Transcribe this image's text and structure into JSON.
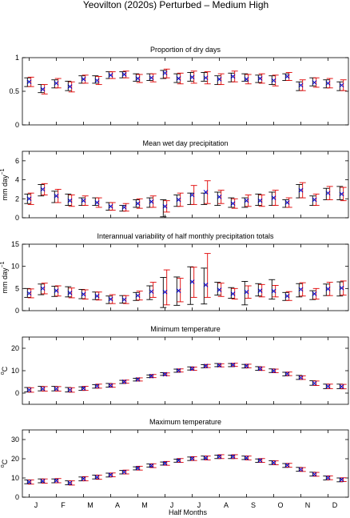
{
  "figure": {
    "title": "Yeovilton (2020s) Perturbed – Medium High",
    "xlabel": "Half Months",
    "month_labels": [
      "J",
      "F",
      "M",
      "A",
      "M",
      "J",
      "J",
      "A",
      "S",
      "O",
      "N",
      "D"
    ]
  },
  "colors": {
    "observed": "#000000",
    "model": "#e00000",
    "marker": "#0000cc"
  },
  "chart_data": [
    {
      "type": "errorbar",
      "title": "Proportion of dry days",
      "ylabel": "",
      "ylim": [
        0,
        1
      ],
      "yticks": [
        0,
        0.5,
        1
      ],
      "x": [
        1,
        2,
        3,
        4,
        5,
        6,
        7,
        8,
        9,
        10,
        11,
        12,
        13,
        14,
        15,
        16,
        17,
        18,
        19,
        20,
        21,
        22,
        23,
        24
      ],
      "observed": {
        "mean": [
          0.64,
          0.54,
          0.61,
          0.58,
          0.67,
          0.67,
          0.74,
          0.74,
          0.7,
          0.71,
          0.75,
          0.7,
          0.72,
          0.72,
          0.67,
          0.71,
          0.7,
          0.68,
          0.67,
          0.71,
          0.58,
          0.64,
          0.61,
          0.58
        ],
        "low": [
          0.57,
          0.48,
          0.55,
          0.51,
          0.62,
          0.62,
          0.69,
          0.7,
          0.65,
          0.66,
          0.69,
          0.63,
          0.65,
          0.65,
          0.6,
          0.64,
          0.65,
          0.63,
          0.6,
          0.66,
          0.51,
          0.58,
          0.55,
          0.51
        ],
        "high": [
          0.7,
          0.6,
          0.67,
          0.65,
          0.73,
          0.73,
          0.79,
          0.79,
          0.76,
          0.76,
          0.81,
          0.76,
          0.78,
          0.78,
          0.73,
          0.77,
          0.76,
          0.74,
          0.73,
          0.76,
          0.64,
          0.7,
          0.67,
          0.64
        ]
      },
      "model": {
        "mean": [
          0.64,
          0.53,
          0.62,
          0.57,
          0.68,
          0.66,
          0.74,
          0.75,
          0.69,
          0.7,
          0.77,
          0.69,
          0.71,
          0.7,
          0.68,
          0.72,
          0.68,
          0.69,
          0.66,
          0.72,
          0.59,
          0.63,
          0.62,
          0.59
        ],
        "low": [
          0.57,
          0.46,
          0.55,
          0.49,
          0.62,
          0.6,
          0.69,
          0.7,
          0.63,
          0.64,
          0.7,
          0.61,
          0.62,
          0.61,
          0.6,
          0.64,
          0.61,
          0.62,
          0.58,
          0.66,
          0.51,
          0.56,
          0.55,
          0.51
        ],
        "high": [
          0.71,
          0.6,
          0.69,
          0.64,
          0.74,
          0.72,
          0.79,
          0.8,
          0.75,
          0.76,
          0.83,
          0.77,
          0.8,
          0.79,
          0.76,
          0.8,
          0.75,
          0.76,
          0.74,
          0.78,
          0.67,
          0.7,
          0.69,
          0.67
        ]
      }
    },
    {
      "type": "errorbar",
      "title": "Mean wet day precipitation",
      "ylabel": "mm day",
      "ylabel_sup": "−1",
      "ylim": [
        0,
        7
      ],
      "yticks": [
        0,
        2,
        4,
        6
      ],
      "x": [
        1,
        2,
        3,
        4,
        5,
        6,
        7,
        8,
        9,
        10,
        11,
        12,
        13,
        14,
        15,
        16,
        17,
        18,
        19,
        20,
        21,
        22,
        23,
        24
      ],
      "observed": {
        "mean": [
          2.0,
          2.9,
          2.2,
          1.9,
          1.7,
          1.7,
          1.2,
          1.0,
          1.5,
          1.6,
          1.0,
          1.8,
          2.0,
          2.0,
          2.0,
          1.6,
          1.6,
          1.9,
          2.0,
          1.5,
          2.8,
          1.8,
          2.5,
          2.6
        ],
        "low": [
          1.5,
          2.3,
          1.6,
          1.3,
          1.3,
          1.3,
          0.8,
          0.7,
          1.1,
          1.1,
          0.1,
          1.2,
          1.4,
          1.4,
          1.3,
          1.1,
          1.1,
          1.3,
          1.3,
          1.1,
          2.1,
          1.3,
          1.9,
          1.9
        ],
        "high": [
          2.5,
          3.5,
          2.8,
          2.5,
          2.1,
          2.1,
          1.6,
          1.3,
          1.9,
          2.1,
          1.9,
          2.4,
          2.6,
          2.6,
          2.7,
          2.1,
          2.1,
          2.5,
          2.7,
          1.9,
          3.5,
          2.3,
          3.1,
          3.3
        ]
      },
      "model": {
        "mean": [
          2.0,
          3.0,
          2.3,
          1.8,
          1.8,
          1.6,
          1.2,
          1.1,
          1.5,
          1.7,
          1.2,
          1.9,
          2.4,
          2.7,
          2.2,
          1.5,
          1.8,
          1.8,
          2.1,
          1.6,
          2.9,
          1.9,
          2.6,
          2.5
        ],
        "low": [
          1.4,
          2.4,
          1.6,
          1.2,
          1.3,
          1.1,
          0.8,
          0.7,
          1.0,
          1.1,
          0.6,
          1.2,
          1.4,
          1.5,
          1.5,
          1.0,
          1.2,
          1.2,
          1.3,
          1.1,
          2.1,
          1.3,
          1.9,
          1.8
        ],
        "high": [
          2.6,
          3.6,
          3.0,
          2.4,
          2.3,
          2.1,
          1.6,
          1.5,
          2.0,
          2.3,
          1.8,
          2.6,
          3.4,
          3.9,
          2.9,
          2.0,
          2.4,
          2.4,
          2.9,
          2.1,
          3.7,
          2.5,
          3.3,
          3.2
        ]
      }
    },
    {
      "type": "errorbar",
      "title": "Interannual variability of half monthly precipitation totals",
      "ylabel": "mm day",
      "ylabel_sup": "−1",
      "ylim": [
        0,
        15
      ],
      "yticks": [
        0,
        5,
        10,
        15
      ],
      "x": [
        1,
        2,
        3,
        4,
        5,
        6,
        7,
        8,
        9,
        10,
        11,
        12,
        13,
        14,
        15,
        16,
        17,
        18,
        19,
        20,
        21,
        22,
        23,
        24
      ],
      "observed": {
        "mean": [
          4.0,
          4.8,
          4.3,
          4.2,
          3.8,
          3.4,
          2.5,
          2.6,
          3.2,
          4.0,
          4.5,
          4.2,
          5.4,
          5.5,
          5.0,
          4.0,
          3.9,
          4.7,
          4.8,
          3.2,
          4.6,
          3.5,
          4.7,
          4.9
        ],
        "low": [
          3.0,
          3.6,
          3.2,
          3.1,
          2.7,
          2.5,
          1.6,
          1.7,
          2.3,
          2.5,
          0.7,
          1.2,
          1.4,
          1.5,
          3.5,
          2.8,
          1.3,
          3.3,
          2.6,
          2.3,
          3.1,
          2.5,
          3.4,
          3.3
        ],
        "high": [
          5.0,
          6.0,
          5.5,
          5.4,
          4.8,
          4.2,
          3.3,
          3.4,
          4.1,
          5.6,
          7.5,
          7.6,
          9.9,
          9.6,
          6.4,
          5.2,
          6.6,
          6.1,
          7.0,
          4.1,
          6.1,
          4.5,
          6.0,
          6.5
        ]
      },
      "model": {
        "mean": [
          3.9,
          5.0,
          4.5,
          4.0,
          3.7,
          3.3,
          2.6,
          2.5,
          3.4,
          4.3,
          4.2,
          4.5,
          6.5,
          5.8,
          4.7,
          3.8,
          4.2,
          4.5,
          4.4,
          3.3,
          4.8,
          3.8,
          4.9,
          5.1
        ],
        "low": [
          2.9,
          3.8,
          3.3,
          2.9,
          2.6,
          2.4,
          1.6,
          1.6,
          2.4,
          3.0,
          1.3,
          2.0,
          3.0,
          3.0,
          3.2,
          2.6,
          2.8,
          3.1,
          3.1,
          2.3,
          3.3,
          2.6,
          3.4,
          3.5
        ],
        "high": [
          4.9,
          6.2,
          5.6,
          5.1,
          4.7,
          4.2,
          3.6,
          3.4,
          4.4,
          6.4,
          9.2,
          7.3,
          9.8,
          12.9,
          6.2,
          5.0,
          5.6,
          5.9,
          5.7,
          4.3,
          6.3,
          5.0,
          6.4,
          6.7
        ]
      }
    },
    {
      "type": "errorbar",
      "title": "Minimum temperature",
      "ylabel": "C",
      "ylabel_sup": "o",
      "ylim": [
        -5,
        25
      ],
      "yticks": [
        0,
        10,
        20
      ],
      "x": [
        1,
        2,
        3,
        4,
        5,
        6,
        7,
        8,
        9,
        10,
        11,
        12,
        13,
        14,
        15,
        16,
        17,
        18,
        19,
        20,
        21,
        22,
        23,
        24
      ],
      "observed": {
        "mean": [
          1.5,
          2.0,
          2.0,
          1.5,
          2.0,
          3.0,
          3.5,
          5.0,
          6.0,
          7.5,
          8.5,
          10.0,
          11.0,
          12.0,
          12.5,
          12.5,
          12.0,
          11.0,
          10.0,
          8.5,
          7.0,
          4.5,
          3.0,
          3.0
        ],
        "low": [
          0.5,
          1.0,
          1.0,
          0.5,
          1.2,
          2.2,
          2.7,
          4.3,
          5.4,
          6.9,
          7.9,
          9.3,
          10.3,
          11.3,
          11.8,
          11.8,
          11.2,
          10.2,
          9.2,
          7.7,
          6.1,
          3.5,
          2.0,
          2.0
        ],
        "high": [
          2.5,
          3.0,
          3.0,
          2.5,
          2.8,
          3.8,
          4.3,
          5.7,
          6.6,
          8.1,
          9.1,
          10.7,
          11.7,
          12.7,
          13.2,
          13.2,
          12.8,
          11.8,
          10.8,
          9.3,
          7.9,
          5.5,
          4.0,
          4.0
        ]
      },
      "model": {
        "mean": [
          1.4,
          1.9,
          1.9,
          1.4,
          2.1,
          3.1,
          3.4,
          5.1,
          6.1,
          7.6,
          8.4,
          10.1,
          10.9,
          12.1,
          12.4,
          12.6,
          12.1,
          10.9,
          9.9,
          8.6,
          6.9,
          4.4,
          3.0,
          2.9
        ],
        "low": [
          0.4,
          0.9,
          0.9,
          0.4,
          1.2,
          2.2,
          2.6,
          4.4,
          5.4,
          6.9,
          7.8,
          9.4,
          10.2,
          11.4,
          11.7,
          11.9,
          11.3,
          10.1,
          9.1,
          7.8,
          6.1,
          3.4,
          2.0,
          1.9
        ],
        "high": [
          2.4,
          2.9,
          2.9,
          2.4,
          3.0,
          4.0,
          4.2,
          5.8,
          6.8,
          8.3,
          9.0,
          10.8,
          11.6,
          12.8,
          13.1,
          13.3,
          12.9,
          11.7,
          10.7,
          9.4,
          7.7,
          5.4,
          4.0,
          3.9
        ]
      }
    },
    {
      "type": "errorbar",
      "title": "Maximum temperature",
      "ylabel": "C",
      "ylabel_sup": "o",
      "ylim": [
        0,
        35
      ],
      "yticks": [
        0,
        10,
        20,
        30
      ],
      "x": [
        1,
        2,
        3,
        4,
        5,
        6,
        7,
        8,
        9,
        10,
        11,
        12,
        13,
        14,
        15,
        16,
        17,
        18,
        19,
        20,
        21,
        22,
        23,
        24
      ],
      "observed": {
        "mean": [
          8.0,
          8.5,
          8.5,
          7.5,
          9.5,
          10.5,
          11.5,
          13.0,
          15.0,
          16.5,
          17.5,
          19.0,
          20.0,
          20.5,
          21.0,
          21.0,
          20.5,
          19.0,
          18.0,
          16.5,
          14.5,
          12.0,
          10.0,
          9.0
        ],
        "low": [
          7.0,
          7.5,
          7.5,
          6.5,
          8.5,
          9.5,
          10.5,
          12.1,
          14.2,
          15.7,
          16.7,
          18.2,
          19.1,
          19.6,
          20.1,
          20.1,
          19.6,
          18.1,
          17.0,
          15.5,
          13.5,
          11.0,
          9.0,
          8.0
        ],
        "high": [
          9.0,
          9.5,
          9.5,
          8.5,
          10.5,
          11.5,
          12.5,
          13.9,
          15.8,
          17.3,
          18.3,
          19.8,
          20.9,
          21.4,
          21.9,
          21.9,
          21.4,
          19.9,
          19.0,
          17.5,
          15.5,
          13.0,
          11.0,
          10.0
        ]
      },
      "model": {
        "mean": [
          7.9,
          8.4,
          8.6,
          7.4,
          9.6,
          10.4,
          11.6,
          13.1,
          15.1,
          16.4,
          17.6,
          19.1,
          20.1,
          20.4,
          21.1,
          21.1,
          20.4,
          19.1,
          17.9,
          16.6,
          14.4,
          11.9,
          10.1,
          9.1
        ],
        "low": [
          6.8,
          7.3,
          7.5,
          6.3,
          8.5,
          9.3,
          10.6,
          12.1,
          14.1,
          15.4,
          16.6,
          18.1,
          19.1,
          19.4,
          20.1,
          20.1,
          19.4,
          18.1,
          16.9,
          15.6,
          13.4,
          10.9,
          9.1,
          8.1
        ],
        "high": [
          9.0,
          9.5,
          9.7,
          8.5,
          10.7,
          11.5,
          12.6,
          14.1,
          16.1,
          17.4,
          18.6,
          20.1,
          21.1,
          21.4,
          22.1,
          22.1,
          21.4,
          20.1,
          18.9,
          17.6,
          15.4,
          12.9,
          11.1,
          10.1
        ]
      }
    }
  ]
}
